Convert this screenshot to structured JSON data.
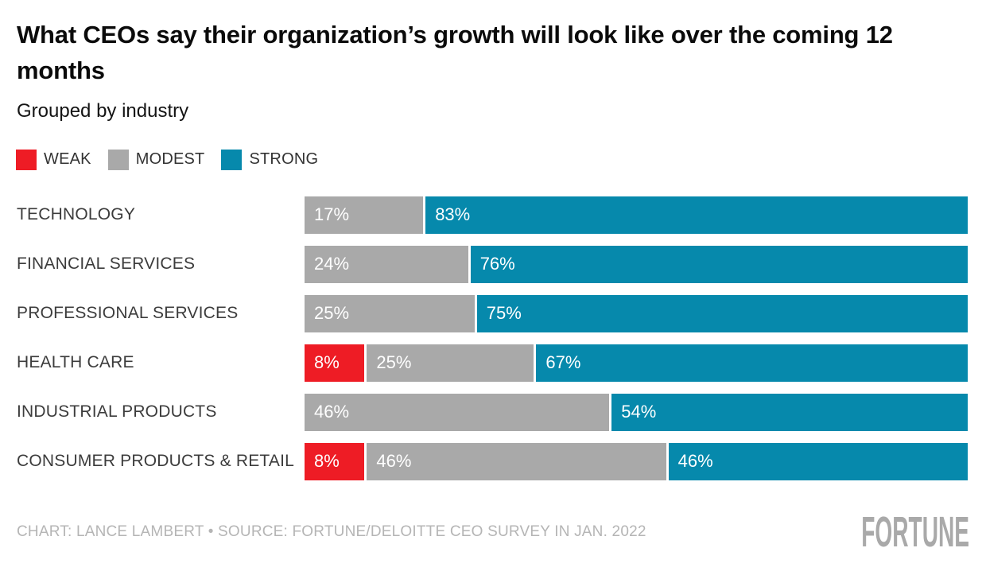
{
  "header": {
    "title": "What CEOs say their organization’s growth will look like over the coming 12 months",
    "subtitle": "Grouped by industry"
  },
  "chart_data": {
    "type": "bar",
    "orientation": "horizontal",
    "stacked": true,
    "unit": "%",
    "title": "What CEOs say their organization’s growth will look like over the coming 12 months",
    "subtitle": "Grouped by industry",
    "categories": [
      "TECHNOLOGY",
      "FINANCIAL SERVICES",
      "PROFESSIONAL SERVICES",
      "HEALTH CARE",
      "INDUSTRIAL PRODUCTS",
      "CONSUMER PRODUCTS & RETAIL"
    ],
    "series": [
      {
        "name": "WEAK",
        "color": "#ee1c25",
        "values": [
          0,
          0,
          0,
          8,
          0,
          8
        ]
      },
      {
        "name": "MODEST",
        "color": "#a9a9a9",
        "values": [
          17,
          24,
          25,
          25,
          46,
          46
        ]
      },
      {
        "name": "STRONG",
        "color": "#0689ac",
        "values": [
          83,
          76,
          75,
          67,
          54,
          46
        ]
      }
    ],
    "xlim": [
      0,
      100
    ],
    "grid": false,
    "legend_position": "top-left",
    "value_labels": "inside-left",
    "value_label_format": "{v}%"
  },
  "footer": {
    "credit": "CHART: LANCE LAMBERT • SOURCE: FORTUNE/DELOITTE CEO SURVEY IN JAN. 2022",
    "logo": "FORTUNE"
  }
}
